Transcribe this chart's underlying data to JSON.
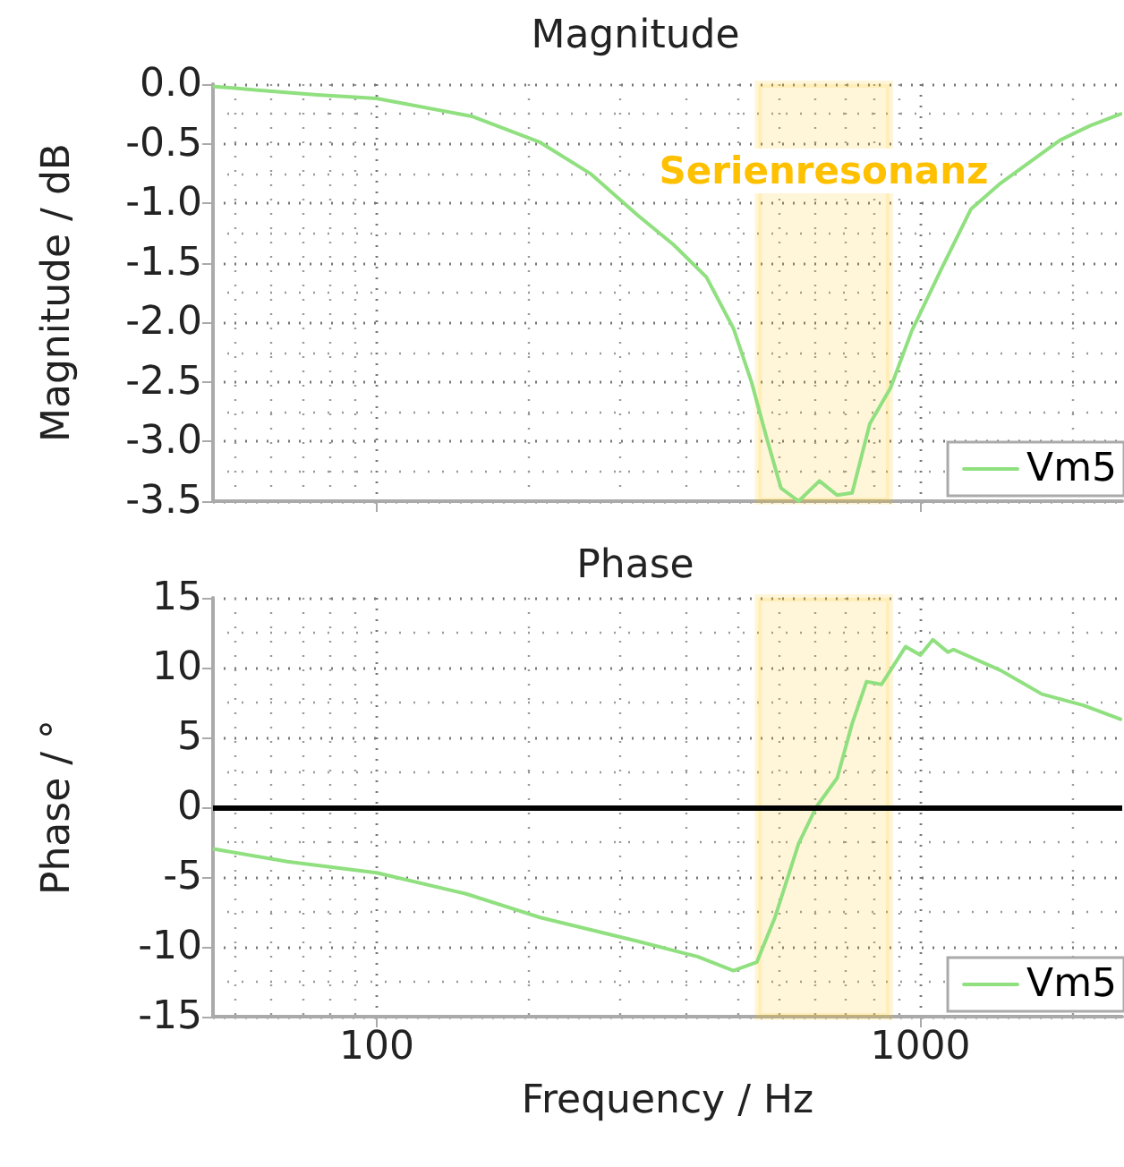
{
  "chart_data": [
    {
      "type": "line",
      "title": "Magnitude",
      "ylabel": "Magnitude / dB",
      "log": "x",
      "xlim": [
        50,
        2350
      ],
      "xticks": [
        {
          "value": 100,
          "label": null
        },
        {
          "value": 1000,
          "label": null
        }
      ],
      "ylim": [
        -3.5,
        0
      ],
      "yticks": [
        {
          "value": -3.5,
          "label": "-3.5"
        },
        {
          "value": -3,
          "label": "-3.0"
        },
        {
          "value": -2.5,
          "label": "-2.5"
        },
        {
          "value": -2,
          "label": "-2.0"
        },
        {
          "value": -1.5,
          "label": "-1.5"
        },
        {
          "value": -1,
          "label": "-1.0"
        },
        {
          "value": -0.5,
          "label": "-0.5"
        },
        {
          "value": 0,
          "label": "0.0"
        }
      ],
      "tick_labels": "y",
      "grid": true,
      "legend": "bottom right",
      "marker": "none",
      "line_style": "solid",
      "bands": [
        {
          "axis": "x",
          "from": 503,
          "to": 877,
          "label": "Serienresonanz",
          "color": "#ffc000"
        }
      ],
      "series": [
        {
          "name": "Vm5",
          "color": "#90e080",
          "x": [
            50.3,
            60.4,
            77.8,
            100,
            149.6,
            200,
            247,
            302,
            352,
            404,
            453,
            489,
            520,
            554,
            597,
            652,
            703,
            749,
            807,
            881,
            964,
            1093,
            1238,
            1405,
            1593,
            1806,
            2048,
            2333
          ],
          "values": [
            -0.02,
            -0.05,
            -0.09,
            -0.12,
            -0.27,
            -0.49,
            -0.75,
            -1.1,
            -1.35,
            -1.62,
            -2.05,
            -2.5,
            -2.95,
            -3.39,
            -3.5,
            -3.33,
            -3.45,
            -3.43,
            -2.85,
            -2.55,
            -2.07,
            -1.55,
            -1.05,
            -0.83,
            -0.65,
            -0.47,
            -0.35,
            -0.25
          ]
        }
      ]
    },
    {
      "type": "line",
      "title": "Phase",
      "xlabel": "Frequency / Hz",
      "ylabel": "Phase / °",
      "log": "x",
      "xlim": [
        50,
        2350
      ],
      "xticks": [
        100,
        1000
      ],
      "ylim": [
        -15,
        15
      ],
      "yticks": [
        -15,
        -10,
        -5,
        0,
        5,
        10,
        15
      ],
      "grid": true,
      "legend": "bottom right",
      "marker": "none",
      "line_style": "solid",
      "bands": [
        {
          "axis": "x",
          "from": 503,
          "to": 877,
          "color": "#ffc000"
        }
      ],
      "ref_lines": [
        {
          "axis": "y",
          "value": 0,
          "color": "#000000"
        }
      ],
      "series": [
        {
          "name": "Vm5",
          "color": "#90e080",
          "x": [
            50.3,
            68.5,
            100,
            146,
            200,
            302,
            389,
            453,
            500,
            540,
            597,
            643,
            703,
            749,
            796,
            848,
            939,
            1000,
            1054,
            1124,
            1150,
            1405,
            1673,
            1994,
            2333
          ],
          "values": [
            -3,
            -3.9,
            -4.7,
            -6.2,
            -7.9,
            -9.6,
            -10.7,
            -11.7,
            -11.1,
            -7.9,
            -2.6,
            0,
            2.1,
            6,
            9,
            8.8,
            11.5,
            10.9,
            12,
            11.1,
            11.3,
            9.8,
            8.1,
            7.3,
            6.3
          ]
        }
      ]
    }
  ]
}
